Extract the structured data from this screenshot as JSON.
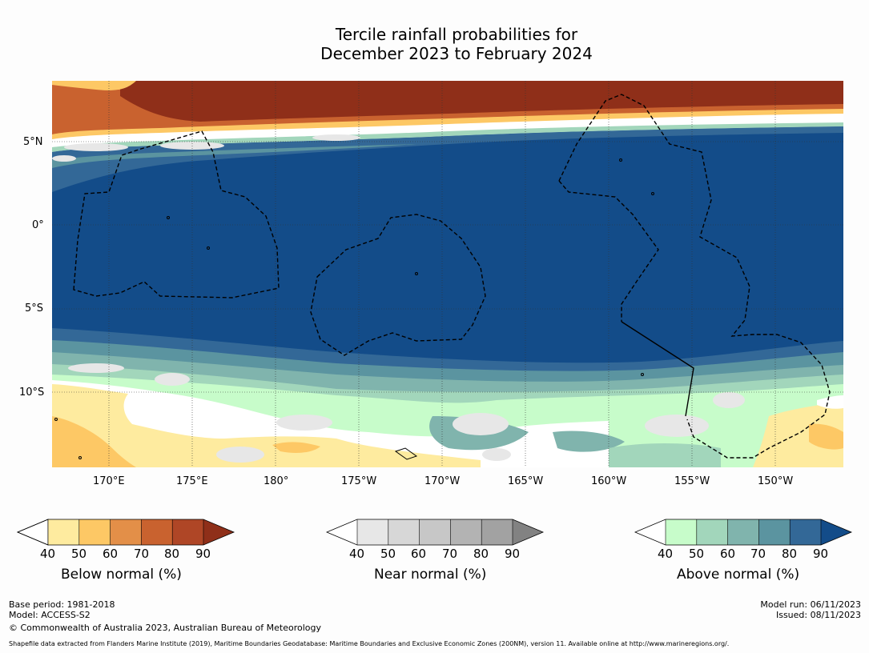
{
  "title": {
    "line1": "Tercile rainfall probabilities for",
    "line2": "December 2023 to February 2024"
  },
  "axes": {
    "lat_labels": [
      "5°N",
      "0°",
      "5°S",
      "10°S"
    ],
    "lon_labels": [
      "170°E",
      "175°E",
      "180°",
      "175°W",
      "170°W",
      "165°W",
      "160°W",
      "155°W",
      "150°W"
    ]
  },
  "legends": [
    {
      "label": "Below normal (%)",
      "ticks": [
        "40",
        "50",
        "60",
        "70",
        "80",
        "90"
      ],
      "colors": [
        "#ffffff",
        "#feeb9f",
        "#fdc865",
        "#e38f48",
        "#c9622f",
        "#af4626",
        "#8f2f19"
      ]
    },
    {
      "label": "Near normal (%)",
      "ticks": [
        "40",
        "50",
        "60",
        "70",
        "80",
        "90"
      ],
      "colors": [
        "#ffffff",
        "#e7e7e7",
        "#d7d7d7",
        "#c7c7c7",
        "#b3b3b3",
        "#a2a2a2",
        "#828282"
      ]
    },
    {
      "label": "Above normal (%)",
      "ticks": [
        "40",
        "50",
        "60",
        "70",
        "80",
        "90"
      ],
      "colors": [
        "#ffffff",
        "#c7fcca",
        "#a2d6bb",
        "#80b4ad",
        "#5b94a0",
        "#336897",
        "#134c89"
      ]
    }
  ],
  "footer": {
    "base_period": "Base period: 1981-2018",
    "model": "Model: ACCESS-S2",
    "copyright": "© Commonwealth of Australia 2023, Australian Bureau of Meteorology",
    "model_run": "Model run: 06/11/2023",
    "issued": "Issued: 08/11/2023",
    "shapefile": "Shapefile data extracted from Flanders Marine Institute (2019), Maritime Boundaries Geodatabase: Maritime Boundaries and Exclusive Economic Zones (200NM), version 11. Available online at http://www.marineregions.org/."
  }
}
